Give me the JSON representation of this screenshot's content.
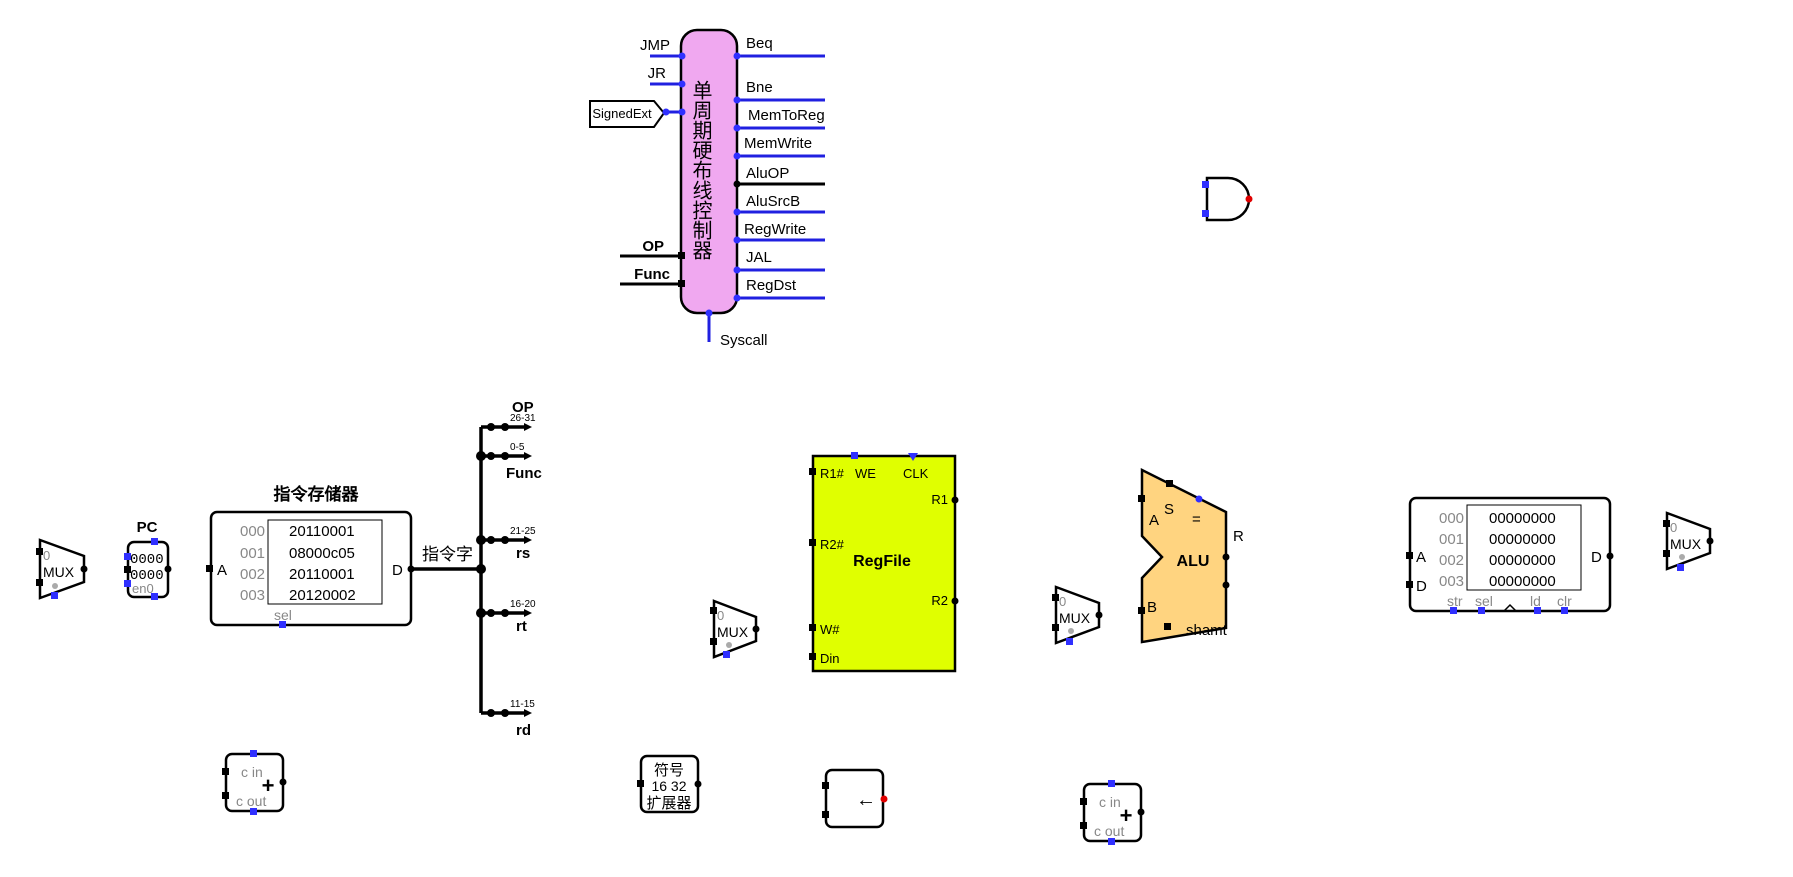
{
  "colors": {
    "wire_blue": "#2020e0",
    "wire_black": "#000000",
    "controller_fill": "#f0a8f0",
    "regfile_fill": "#e0ff00",
    "alu_fill": "#ffd480",
    "pin_blue": "#3030ff",
    "dot_red": "#e00000",
    "grey_text": "#888888"
  },
  "controller": {
    "title": "单周期硬布线控制器",
    "inputs": [
      "JMP",
      "JR"
    ],
    "signedext_tunnel": "SignedExt",
    "op_label": "OP",
    "func_label": "Func",
    "outputs": [
      "Beq",
      "Bne",
      "MemToReg",
      "MemWrite",
      "AluOP",
      "AluSrcB",
      "RegWrite",
      "JAL",
      "RegDst"
    ],
    "syscall_label": "Syscall"
  },
  "mux_label": "MUX",
  "mux_zero": "0",
  "pc": {
    "title": "PC",
    "value_top": "0000",
    "value_bottom": "0000",
    "en_label": "en0"
  },
  "instr_mem": {
    "title": "指令存储器",
    "addr_label": "A",
    "data_label": "D",
    "sel_label": "sel",
    "rows": [
      {
        "addr": "000",
        "value": "20110001"
      },
      {
        "addr": "001",
        "value": "08000c05"
      },
      {
        "addr": "002",
        "value": "20110001"
      },
      {
        "addr": "003",
        "value": "20120002"
      }
    ]
  },
  "instr_word_label": "指令字",
  "splitter": {
    "fields": [
      {
        "bits": "26-31",
        "name": "OP"
      },
      {
        "bits": "0-5",
        "name": "Func"
      },
      {
        "bits": "21-25",
        "name": "rs"
      },
      {
        "bits": "16-20",
        "name": "rt"
      },
      {
        "bits": "11-15",
        "name": "rd"
      }
    ]
  },
  "regfile": {
    "title": "RegFile",
    "r1_in": "R1#",
    "we": "WE",
    "clk": "CLK",
    "r1_out": "R1",
    "r2_in": "R2#",
    "r2_out": "R2",
    "w_in": "W#",
    "din": "Din"
  },
  "alu": {
    "title": "ALU",
    "a": "A",
    "b": "B",
    "s": "S",
    "eq": "=",
    "r": "R",
    "shamt": "shamt"
  },
  "data_mem": {
    "addr_label": "A",
    "d_in_label": "D",
    "d_out_label": "D",
    "rows": [
      {
        "addr": "000",
        "value": "00000000"
      },
      {
        "addr": "001",
        "value": "00000000"
      },
      {
        "addr": "002",
        "value": "00000000"
      },
      {
        "addr": "003",
        "value": "00000000"
      }
    ],
    "bottom_labels": [
      "str",
      "sel",
      "ld",
      "clr"
    ]
  },
  "adder": {
    "cin": "c in",
    "cout": "c out",
    "plus": "+"
  },
  "sign_ext": {
    "line1": "符号",
    "line2": "16 32",
    "line3": "扩展器"
  },
  "shifter": {
    "arrow": "←"
  }
}
